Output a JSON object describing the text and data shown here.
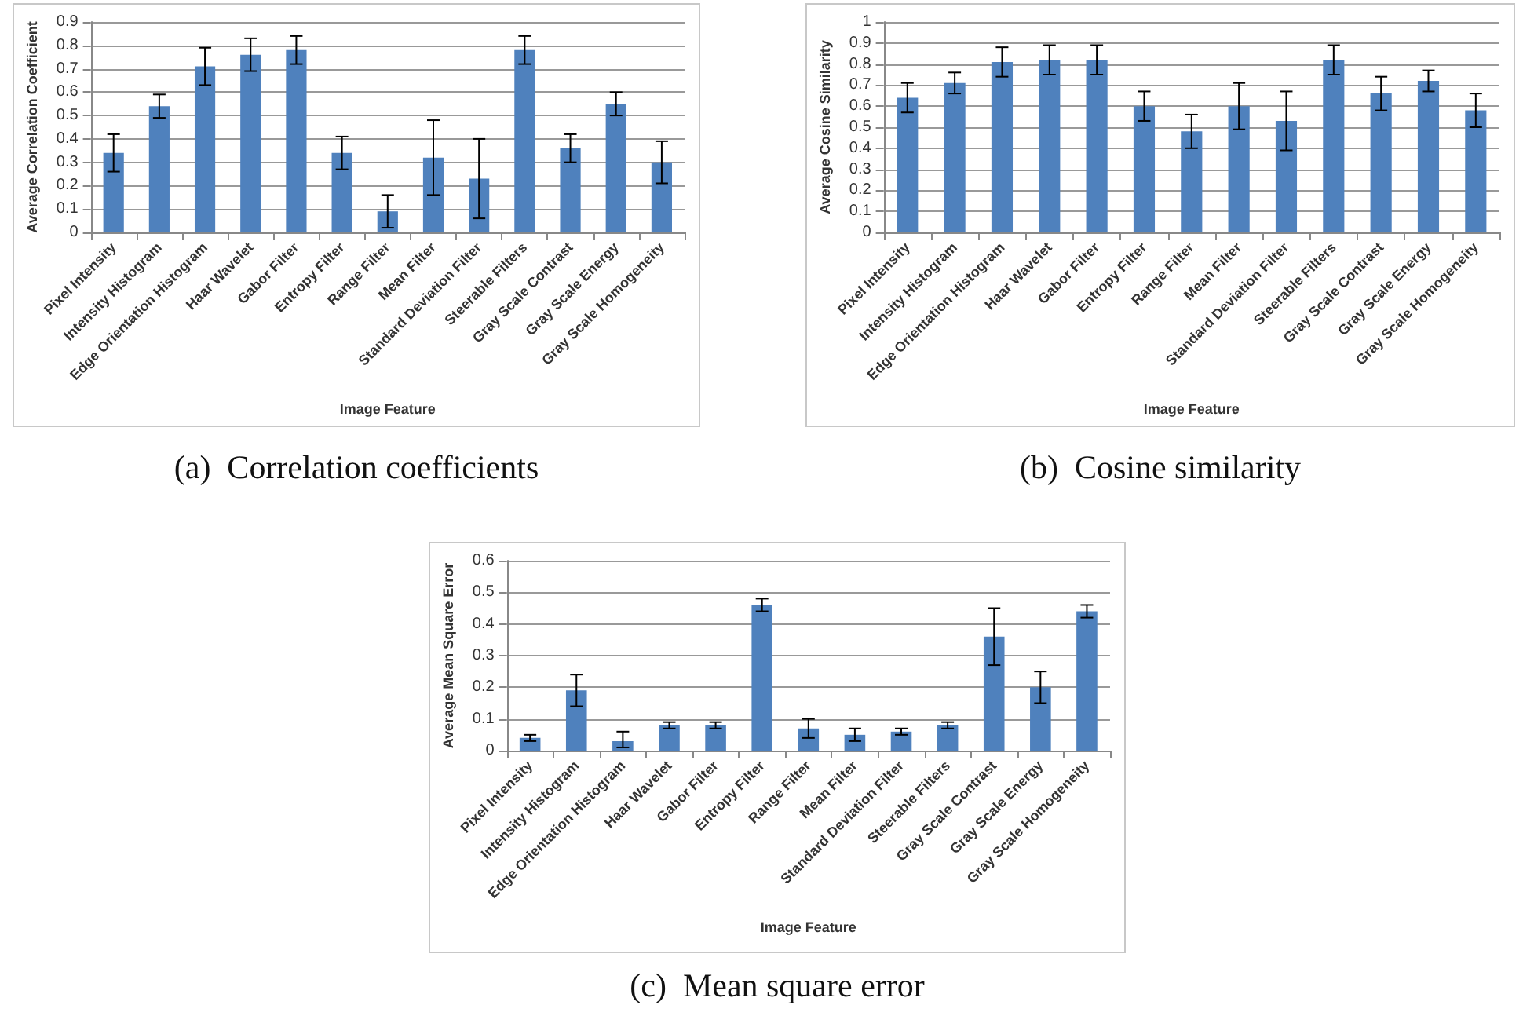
{
  "chart_data": [
    {
      "type": "bar",
      "title": "(a)  Correlation coefficients",
      "xlabel": "Image Feature",
      "ylabel": "Average Correlation Coefficient",
      "categories": [
        "Pixel Intensity",
        "Intensity Histogram",
        "Edge Orientation Histogram",
        "Haar Wavelet",
        "Gabor Filter",
        "Entropy Filter",
        "Range Filter",
        "Mean Filter",
        "Standard Deviation Filter",
        "Steerable Filters",
        "Gray Scale Contrast",
        "Gray Scale Energy",
        "Gray Scale Homogeneity"
      ],
      "values": [
        0.34,
        0.54,
        0.71,
        0.76,
        0.78,
        0.34,
        0.09,
        0.32,
        0.23,
        0.78,
        0.36,
        0.55,
        0.3
      ],
      "errors": [
        0.08,
        0.05,
        0.08,
        0.07,
        0.06,
        0.07,
        0.07,
        0.16,
        0.17,
        0.06,
        0.06,
        0.05,
        0.09
      ],
      "color": "#4f81bd",
      "ylim": [
        0,
        0.9
      ],
      "yticks": [
        0,
        0.1,
        0.2,
        0.3,
        0.4,
        0.5,
        0.6,
        0.7,
        0.8,
        0.9
      ],
      "grid": "y"
    },
    {
      "type": "bar",
      "title": "(b)  Cosine similarity",
      "xlabel": "Image Feature",
      "ylabel": "Average Cosine Similarity",
      "categories": [
        "Pixel Intensity",
        "Intensity Histogram",
        "Edge Orientation Histogram",
        "Haar Wavelet",
        "Gabor Filter",
        "Entropy Filter",
        "Range Filter",
        "Mean Filter",
        "Standard Deviation Filter",
        "Steerable Filters",
        "Gray Scale Contrast",
        "Gray Scale Energy",
        "Gray Scale Homogeneity"
      ],
      "values": [
        0.64,
        0.71,
        0.81,
        0.82,
        0.82,
        0.6,
        0.48,
        0.6,
        0.53,
        0.82,
        0.66,
        0.72,
        0.58
      ],
      "errors": [
        0.07,
        0.05,
        0.07,
        0.07,
        0.07,
        0.07,
        0.08,
        0.11,
        0.14,
        0.07,
        0.08,
        0.05,
        0.08
      ],
      "color": "#4f81bd",
      "ylim": [
        0,
        1
      ],
      "yticks": [
        0,
        0.1,
        0.2,
        0.3,
        0.4,
        0.5,
        0.6,
        0.7,
        0.8,
        0.9,
        1
      ],
      "grid": "y"
    },
    {
      "type": "bar",
      "title": "(c)  Mean square error",
      "xlabel": "Image Feature",
      "ylabel": "Average Mean Square Error",
      "categories": [
        "Pixel Intensity",
        "Intensity Histogram",
        "Edge Orientation Histogram",
        "Haar Wavelet",
        "Gabor Filter",
        "Entropy Filter",
        "Range Filter",
        "Mean Filter",
        "Standard Deviation Filter",
        "Steerable Filters",
        "Gray Scale Contrast",
        "Gray Scale Energy",
        "Gray Scale Homogeneity"
      ],
      "values": [
        0.04,
        0.19,
        0.03,
        0.08,
        0.08,
        0.46,
        0.07,
        0.05,
        0.06,
        0.08,
        0.36,
        0.2,
        0.44
      ],
      "errors": [
        0.01,
        0.05,
        [
          0.01,
          0.06
        ],
        0.01,
        0.01,
        0.02,
        0.03,
        0.02,
        0.01,
        0.01,
        0.09,
        0.05,
        0.02
      ],
      "color": "#4f81bd",
      "ylim": [
        0,
        0.6
      ],
      "yticks": [
        0,
        0.1,
        0.2,
        0.3,
        0.4,
        0.5,
        0.6
      ],
      "grid": "y"
    }
  ]
}
